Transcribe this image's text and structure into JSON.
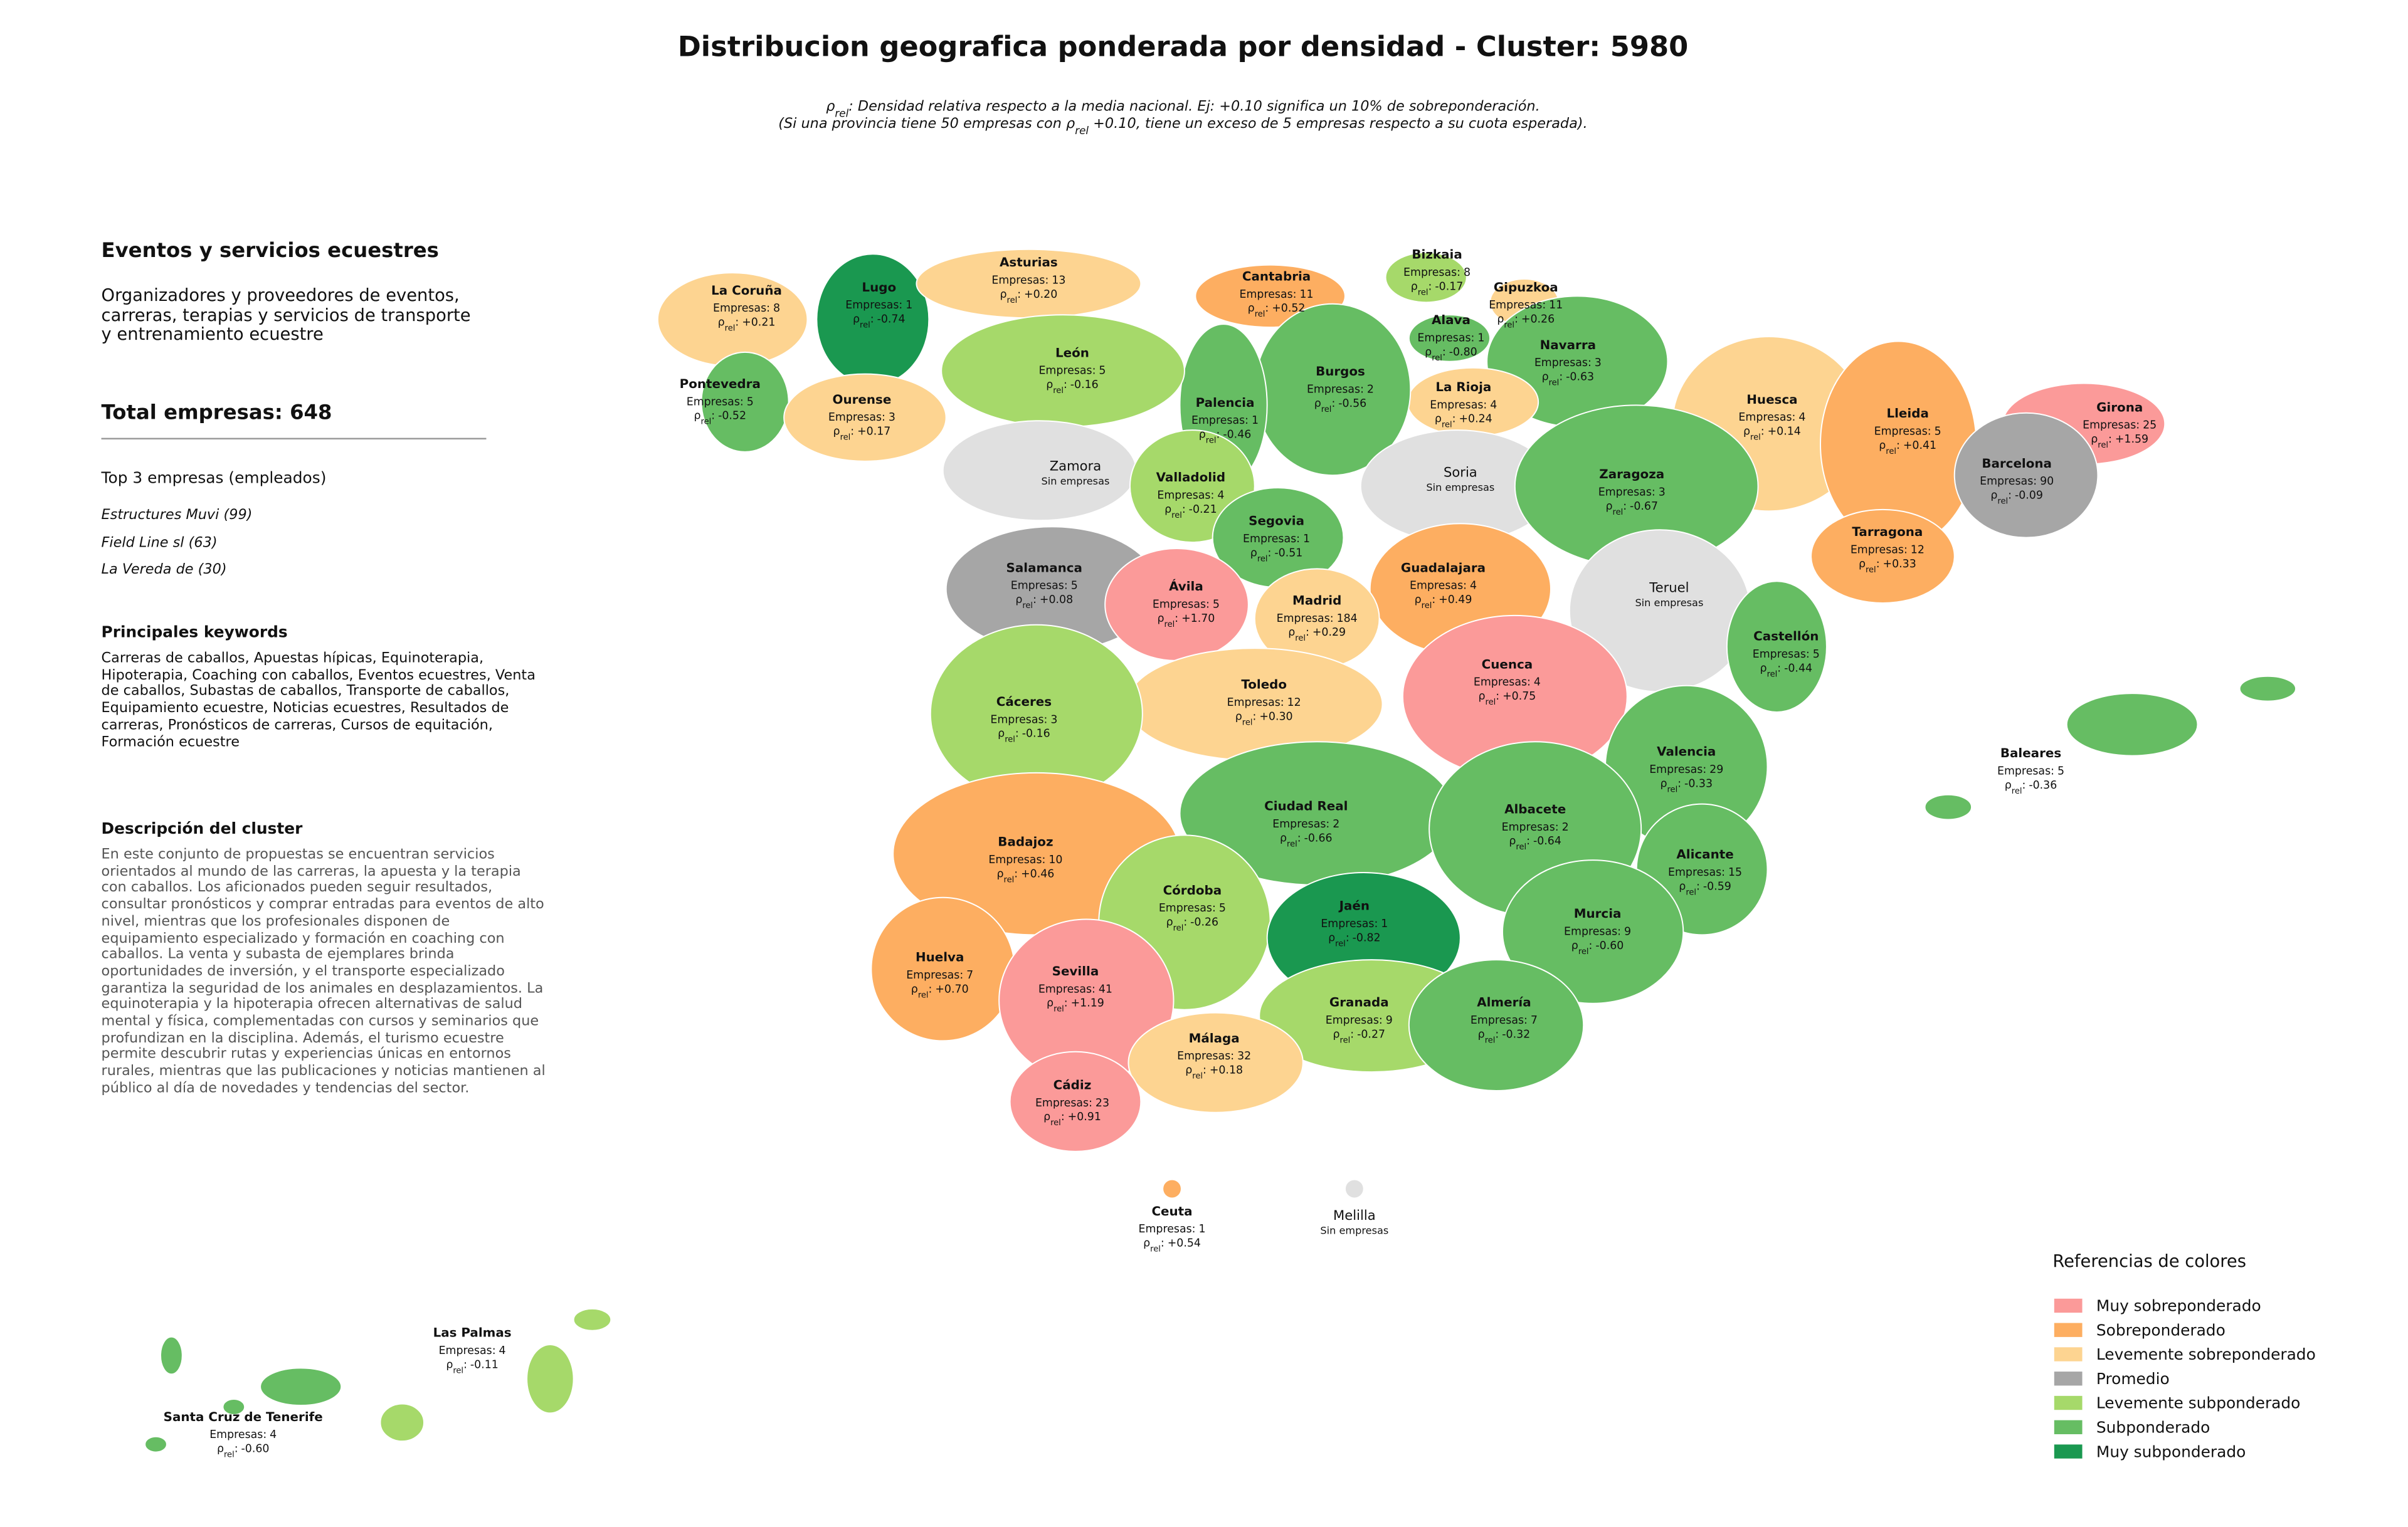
{
  "header": {
    "title": "Distribucion geografica ponderada por densidad - Cluster: 5980",
    "subtitle": [
      [
        {
          "text": "ρ"
        },
        {
          "text": "rel",
          "subscript": true
        },
        {
          "text": ": Densidad relativa respecto a la media nacional. Ej: +0.10 significa un 10% de sobreponderación."
        }
      ],
      [
        {
          "text": "(Si una provincia tiene 50 empresas con "
        },
        {
          "text": "ρ"
        },
        {
          "text": "rel",
          "subscript": true
        },
        {
          "text": " +0.10, tiene un exceso de 5 empresas respecto a su cuota esperada)."
        }
      ]
    ]
  },
  "panel": {
    "heading": "Eventos y servicios ecuestres",
    "summary": "Organizadores y proveedores de eventos, carreras, terapias y servicios de transporte y entrenamiento ecuestre",
    "total": "Total empresas: 648",
    "top_heading": "Top 3 empresas (empleados)",
    "top_companies": [
      "Estructures Muvi (99)",
      "Field Line sl (63)",
      "La Vereda de (30)"
    ],
    "keywords_heading": "Principales keywords",
    "keywords": "Carreras de caballos, Apuestas hípicas, Equinoterapia, Hipoterapia, Coaching con caballos, Eventos ecuestres, Venta de caballos, Subastas de caballos, Transporte de caballos, Equipamiento ecuestre, Noticias ecuestres, Resultados de carreras, Pronósticos de carreras, Cursos de equitación, Formación ecuestre",
    "description_heading": "Descripción del cluster",
    "description": "En este conjunto de propuestas se encuentran servicios orientados al mundo de las carreras, la apuesta y la terapia con caballos. Los aficionados pueden seguir resultados, consultar pronósticos y comprar entradas para eventos de alto nivel, mientras que los profesionales disponen de equipamiento especializado y formación en coaching con caballos. La venta y subasta de ejemplares brinda oportunidades de inversión, y el transporte especializado garantiza la seguridad de los animales en desplazamientos. La equinoterapia y la hipoterapia ofrecen alternativas de salud mental y física, complementadas con cursos y seminarios que profundizan en la disciplina. Además, el turismo ecuestre permite descubrir rutas y experiencias únicas en entornos rurales, mientras que las publicaciones y noticias mantienen al público al día de novedades y tendencias del sector."
  },
  "map": {
    "empresas_label": "Empresas:",
    "rho_label": [
      {
        "text": "ρ"
      },
      {
        "text": "rel",
        "subscript": true
      },
      {
        "text": ":"
      }
    ],
    "provinces": [
      {
        "name": "La Coruña",
        "empresas": 8,
        "rho": "+0.21",
        "color": "#fdd491"
      },
      {
        "name": "Lugo",
        "empresas": 1,
        "rho": "-0.74",
        "color": "#1a9850"
      },
      {
        "name": "Asturias",
        "empresas": 13,
        "rho": "+0.20",
        "color": "#fdd491"
      },
      {
        "name": "Cantabria",
        "empresas": 11,
        "rho": "+0.52",
        "color": "#fdae61"
      },
      {
        "name": "Bizkaia",
        "empresas": 8,
        "rho": "-0.17",
        "color": "#a6d96a"
      },
      {
        "name": "Gipuzkoa",
        "empresas": 11,
        "rho": "+0.26",
        "color": "#fdd491"
      },
      {
        "name": "Alava",
        "empresas": 1,
        "rho": "-0.80",
        "color": "#66bd63"
      },
      {
        "name": "Navarra",
        "empresas": 3,
        "rho": "-0.63",
        "color": "#66bd63"
      },
      {
        "name": "La Rioja",
        "empresas": 4,
        "rho": "+0.24",
        "color": "#fdd491"
      },
      {
        "name": "Burgos",
        "empresas": 2,
        "rho": "-0.56",
        "color": "#66bd63"
      },
      {
        "name": "Palencia",
        "empresas": 1,
        "rho": "-0.46",
        "color": "#66bd63"
      },
      {
        "name": "León",
        "empresas": 5,
        "rho": "-0.16",
        "color": "#a6d96a"
      },
      {
        "name": "Pontevedra",
        "empresas": 5,
        "rho": "-0.52",
        "color": "#66bd63"
      },
      {
        "name": "Ourense",
        "empresas": 3,
        "rho": "+0.17",
        "color": "#fdd491"
      },
      {
        "name": "Zamora",
        "note": "Sin empresas",
        "color": "#e0e0e0"
      },
      {
        "name": "Valladolid",
        "empresas": 4,
        "rho": "-0.21",
        "color": "#a6d96a"
      },
      {
        "name": "Soria",
        "note": "Sin empresas",
        "color": "#e0e0e0"
      },
      {
        "name": "Huesca",
        "empresas": 4,
        "rho": "+0.14",
        "color": "#fdd491"
      },
      {
        "name": "Lleida",
        "empresas": 5,
        "rho": "+0.41",
        "color": "#fdae61"
      },
      {
        "name": "Girona",
        "empresas": 25,
        "rho": "+1.59",
        "color": "#fb9a99"
      },
      {
        "name": "Barcelona",
        "empresas": 90,
        "rho": "-0.09",
        "color": "#a6a6a6"
      },
      {
        "name": "Zaragoza",
        "empresas": 3,
        "rho": "-0.67",
        "color": "#66bd63"
      },
      {
        "name": "Tarragona",
        "empresas": 12,
        "rho": "+0.33",
        "color": "#fdae61"
      },
      {
        "name": "Segovia",
        "empresas": 1,
        "rho": "-0.51",
        "color": "#66bd63"
      },
      {
        "name": "Salamanca",
        "empresas": 5,
        "rho": "+0.08",
        "color": "#a6a6a6"
      },
      {
        "name": "Guadalajara",
        "empresas": 4,
        "rho": "+0.49",
        "color": "#fdae61"
      },
      {
        "name": "Teruel",
        "note": "Sin empresas",
        "color": "#e0e0e0"
      },
      {
        "name": "Ávila",
        "empresas": 5,
        "rho": "+1.70",
        "color": "#fb9a99"
      },
      {
        "name": "Madrid",
        "empresas": 184,
        "rho": "+0.29",
        "color": "#fdd491"
      },
      {
        "name": "Castellón",
        "empresas": 5,
        "rho": "-0.44",
        "color": "#66bd63"
      },
      {
        "name": "Cuenca",
        "empresas": 4,
        "rho": "+0.75",
        "color": "#fb9a99"
      },
      {
        "name": "Toledo",
        "empresas": 12,
        "rho": "+0.30",
        "color": "#fdd491"
      },
      {
        "name": "Cáceres",
        "empresas": 3,
        "rho": "-0.16",
        "color": "#a6d96a"
      },
      {
        "name": "Valencia",
        "empresas": 29,
        "rho": "-0.33",
        "color": "#66bd63"
      },
      {
        "name": "Ciudad Real",
        "empresas": 2,
        "rho": "-0.66",
        "color": "#66bd63"
      },
      {
        "name": "Albacete",
        "empresas": 2,
        "rho": "-0.64",
        "color": "#66bd63"
      },
      {
        "name": "Badajoz",
        "empresas": 10,
        "rho": "+0.46",
        "color": "#fdae61"
      },
      {
        "name": "Alicante",
        "empresas": 15,
        "rho": "-0.59",
        "color": "#66bd63"
      },
      {
        "name": "Córdoba",
        "empresas": 5,
        "rho": "-0.26",
        "color": "#a6d96a"
      },
      {
        "name": "Jaén",
        "empresas": 1,
        "rho": "-0.82",
        "color": "#1a9850"
      },
      {
        "name": "Murcia",
        "empresas": 9,
        "rho": "-0.60",
        "color": "#66bd63"
      },
      {
        "name": "Huelva",
        "empresas": 7,
        "rho": "+0.70",
        "color": "#fdae61"
      },
      {
        "name": "Sevilla",
        "empresas": 41,
        "rho": "+1.19",
        "color": "#fb9a99"
      },
      {
        "name": "Granada",
        "empresas": 9,
        "rho": "-0.27",
        "color": "#a6d96a"
      },
      {
        "name": "Almería",
        "empresas": 7,
        "rho": "-0.32",
        "color": "#66bd63"
      },
      {
        "name": "Málaga",
        "empresas": 32,
        "rho": "+0.18",
        "color": "#fdd491"
      },
      {
        "name": "Cádiz",
        "empresas": 23,
        "rho": "+0.91",
        "color": "#fb9a99"
      },
      {
        "name": "Baleares",
        "empresas": 5,
        "rho": "-0.36",
        "color": "#66bd63"
      },
      {
        "name": "Ceuta",
        "empresas": 1,
        "rho": "+0.54",
        "color": "#fdae61"
      },
      {
        "name": "Melilla",
        "note": "Sin empresas",
        "color": "#e0e0e0"
      },
      {
        "name": "Las Palmas",
        "empresas": 4,
        "rho": "-0.11",
        "color": "#a6d96a"
      },
      {
        "name": "Santa Cruz de Tenerife",
        "empresas": 4,
        "rho": "-0.60",
        "color": "#66bd63"
      }
    ]
  },
  "legend": {
    "title": "Referencias de colores",
    "entries": [
      {
        "label": "Muy sobreponderado",
        "color": "#fb9a99"
      },
      {
        "label": "Sobreponderado",
        "color": "#fdae61"
      },
      {
        "label": "Levemente sobreponderado",
        "color": "#fdd491"
      },
      {
        "label": "Promedio",
        "color": "#a6a6a6"
      },
      {
        "label": "Levemente subponderado",
        "color": "#a6d96a"
      },
      {
        "label": "Subponderado",
        "color": "#66bd63"
      },
      {
        "label": "Muy subponderado",
        "color": "#1a9850"
      }
    ]
  }
}
